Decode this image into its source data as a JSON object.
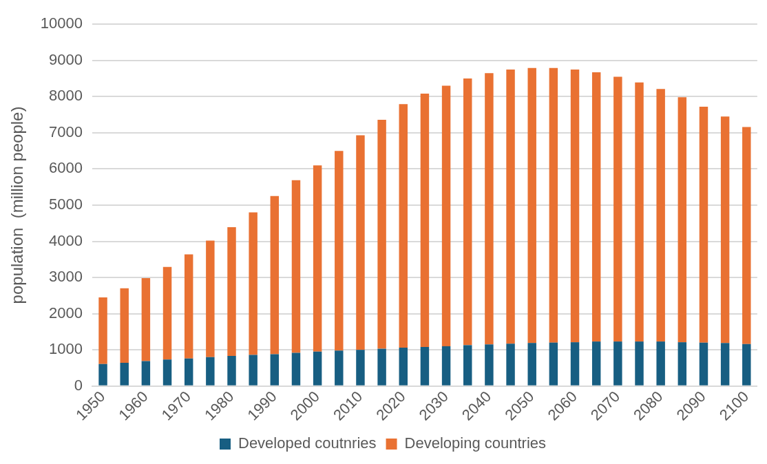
{
  "chart_data": {
    "type": "bar",
    "stacked": true,
    "ylabel": "population  (million people)",
    "categories": [
      "1950",
      null,
      "1960",
      null,
      "1970",
      null,
      "1980",
      null,
      "1990",
      null,
      "2000",
      null,
      "2010",
      null,
      "2020",
      null,
      "2030",
      null,
      "2040",
      null,
      "2050",
      null,
      "2060",
      null,
      "2070",
      null,
      "2080",
      null,
      "2090",
      null,
      "2100"
    ],
    "series": [
      {
        "name": "Developed coutnries",
        "color": "#175e82",
        "values": [
          610,
          640,
          690,
          730,
          760,
          800,
          830,
          860,
          880,
          920,
          950,
          980,
          1000,
          1030,
          1060,
          1080,
          1100,
          1130,
          1150,
          1170,
          1190,
          1200,
          1210,
          1230,
          1230,
          1230,
          1230,
          1210,
          1200,
          1190,
          1160
        ]
      },
      {
        "name": "Developing countries",
        "color": "#e97132",
        "values": [
          1840,
          2060,
          2290,
          2560,
          2880,
          3220,
          3560,
          3940,
          4370,
          4770,
          5150,
          5520,
          5930,
          6330,
          6730,
          7000,
          7200,
          7370,
          7500,
          7580,
          7600,
          7590,
          7540,
          7440,
          7320,
          7160,
          6980,
          6770,
          6520,
          6260,
          6000
        ]
      }
    ],
    "ylim": [
      0,
      10000
    ],
    "yticks": [
      0,
      1000,
      2000,
      3000,
      4000,
      5000,
      6000,
      7000,
      8000,
      9000,
      10000
    ],
    "grid": "y",
    "legend": "bottom"
  }
}
